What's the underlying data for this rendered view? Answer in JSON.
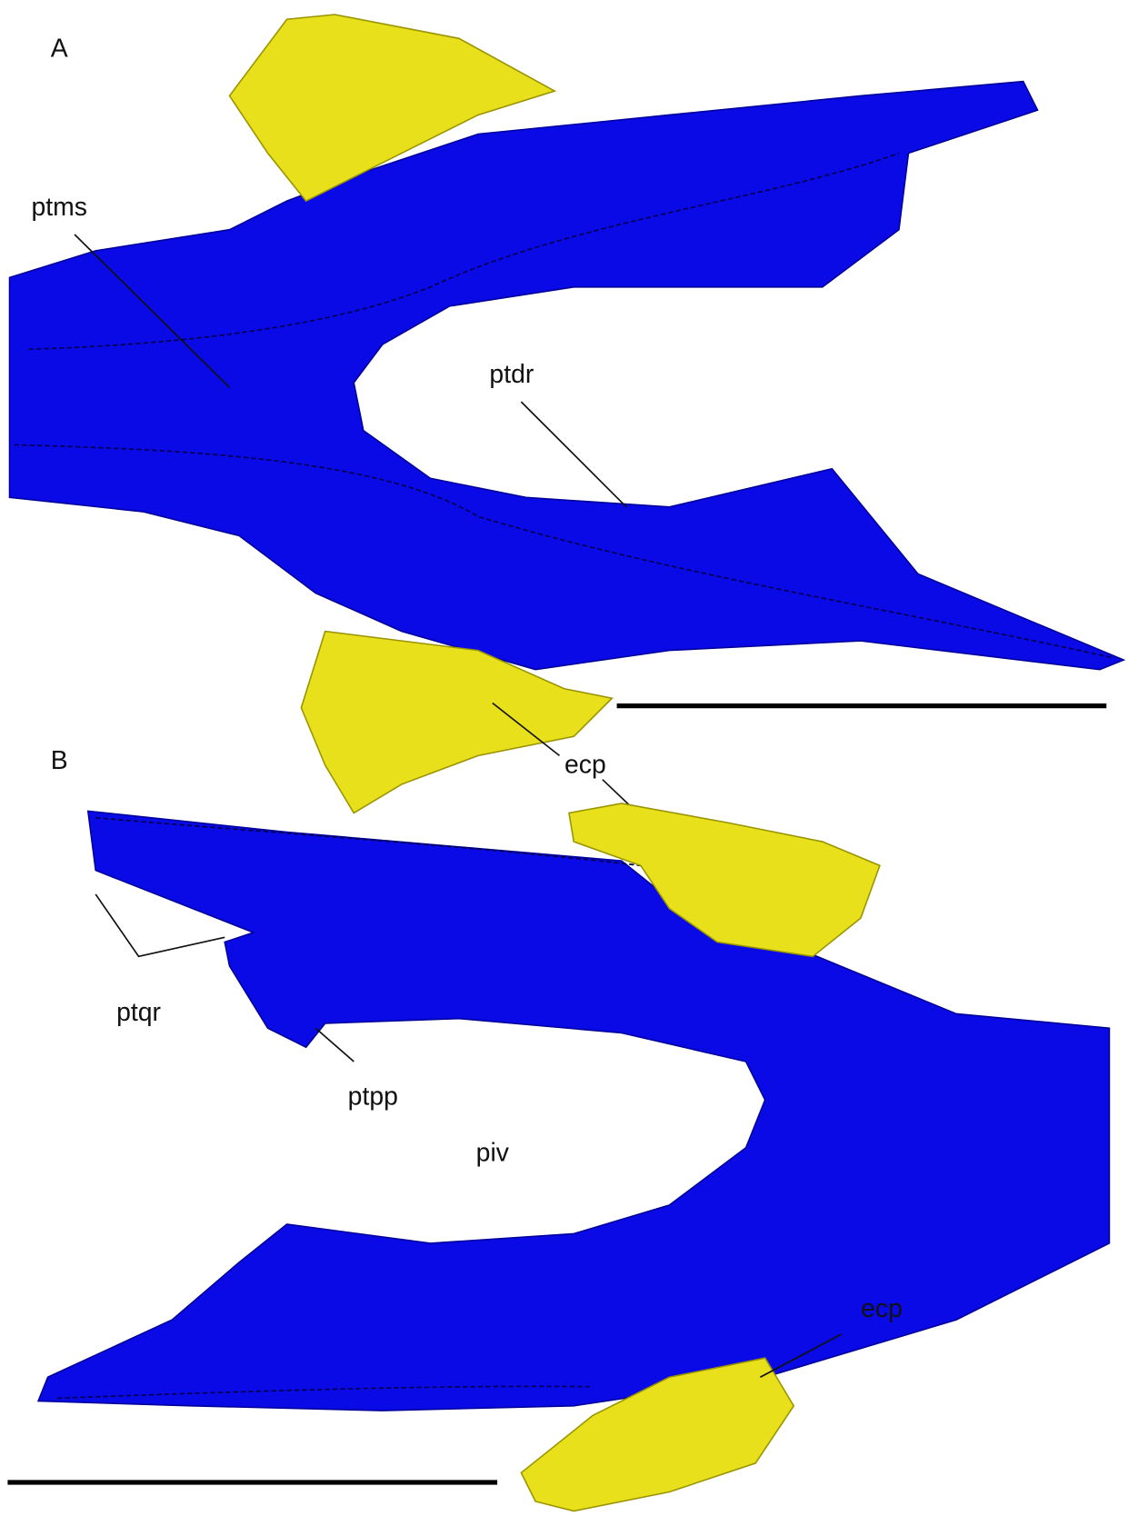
{
  "figure": {
    "panels": [
      {
        "letter": "A",
        "labels": [
          "ptms",
          "ptdr",
          "ecp"
        ]
      },
      {
        "letter": "B",
        "labels": [
          "ptqr",
          "ptpp",
          "piv",
          "ecp"
        ]
      }
    ]
  }
}
